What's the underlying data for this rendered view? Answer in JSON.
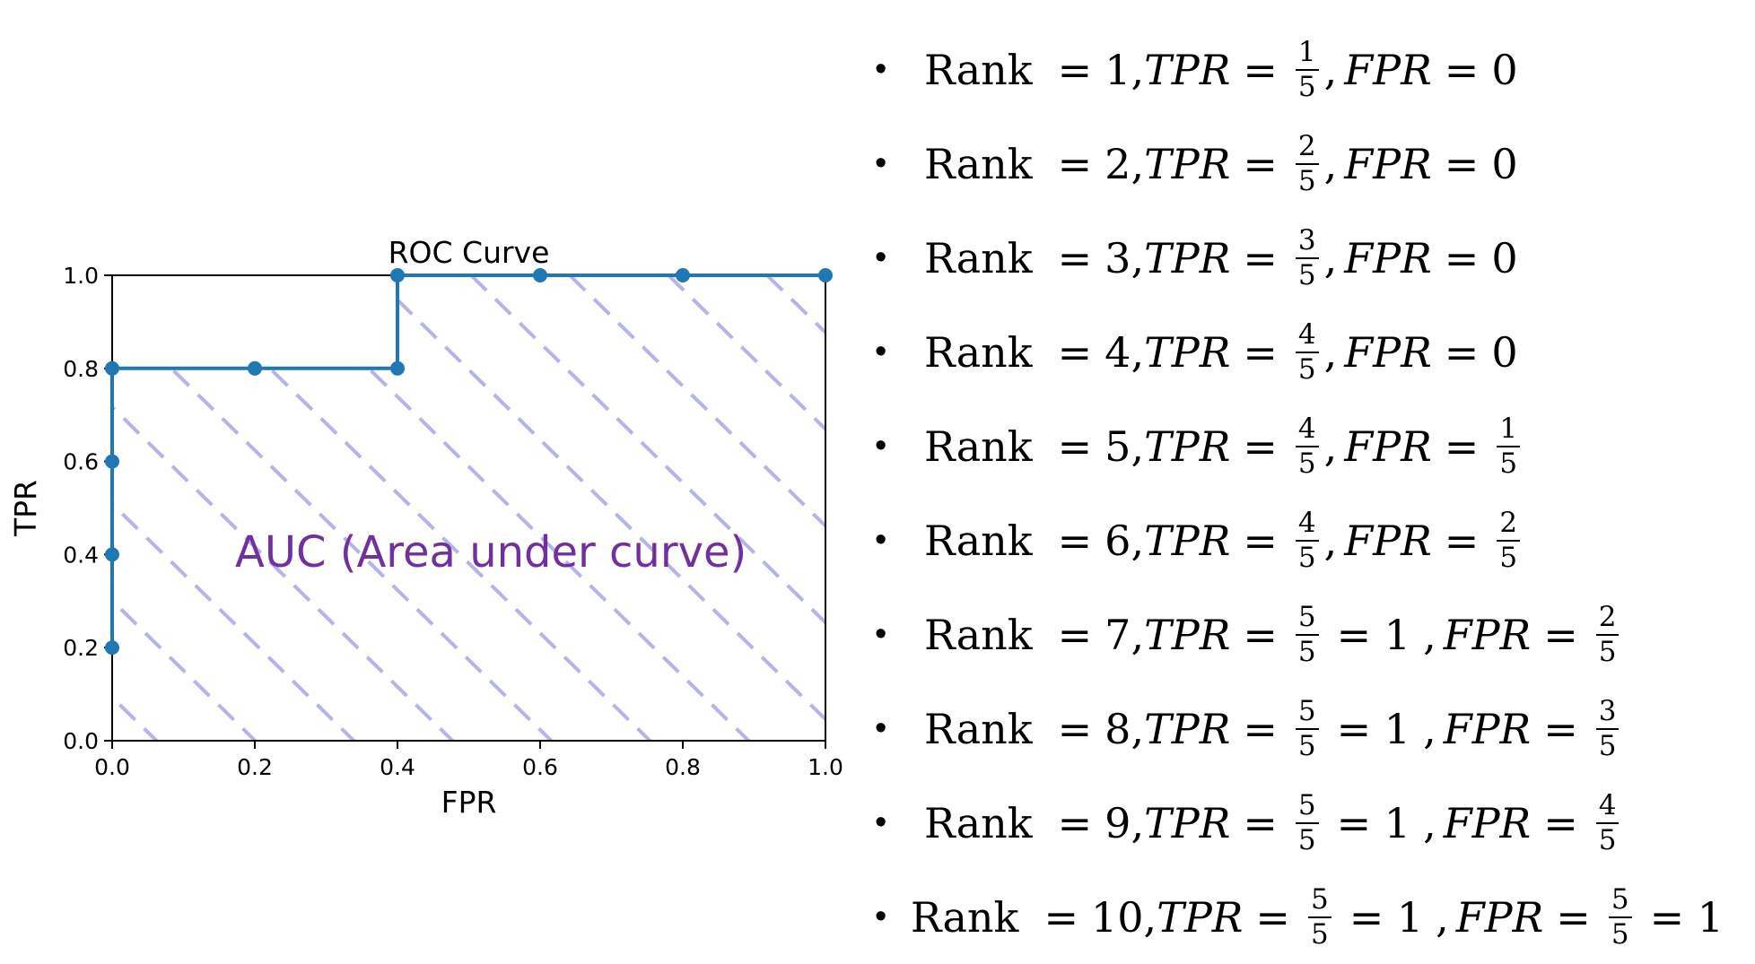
{
  "chart_data": {
    "type": "line",
    "title": "ROC Curve",
    "xlabel": "FPR",
    "ylabel": "TPR",
    "xlim": [
      0.0,
      1.0
    ],
    "ylim": [
      0.0,
      1.0
    ],
    "xticks": [
      "0.0",
      "0.2",
      "0.4",
      "0.6",
      "0.8",
      "1.0"
    ],
    "yticks": [
      "0.0",
      "0.2",
      "0.4",
      "0.6",
      "0.8",
      "1.0"
    ],
    "grid": false,
    "series": [
      {
        "x": [
          0.0,
          0.0,
          0.0,
          0.0,
          0.2,
          0.4,
          0.4,
          0.6,
          0.8,
          1.0
        ],
        "y": [
          0.2,
          0.4,
          0.6,
          0.8,
          0.8,
          0.8,
          1.0,
          1.0,
          1.0,
          1.0
        ],
        "color": "#1f77b4",
        "marker": "circle"
      }
    ],
    "annotation": "AUC (Area under curve)",
    "annotation_color": "#7030a0",
    "hatch_color": "#b3b3ee"
  },
  "rank_list": [
    {
      "rank_word": "Rank",
      "eq": "=",
      "rank": "1,",
      "tpr_var": "TPR",
      "tpr_frac": [
        "1",
        "5"
      ],
      "tpr_extra": "",
      "fpr_var": "FPR",
      "fpr_value": "0",
      "fpr_frac": null,
      "fpr_extra": ""
    },
    {
      "rank_word": "Rank",
      "eq": "=",
      "rank": "2,",
      "tpr_var": "TPR",
      "tpr_frac": [
        "2",
        "5"
      ],
      "tpr_extra": "",
      "fpr_var": "FPR",
      "fpr_value": "0",
      "fpr_frac": null,
      "fpr_extra": ""
    },
    {
      "rank_word": "Rank",
      "eq": "=",
      "rank": "3,",
      "tpr_var": "TPR",
      "tpr_frac": [
        "3",
        "5"
      ],
      "tpr_extra": "",
      "fpr_var": "FPR",
      "fpr_value": "0",
      "fpr_frac": null,
      "fpr_extra": ""
    },
    {
      "rank_word": "Rank",
      "eq": "=",
      "rank": "4,",
      "tpr_var": "TPR",
      "tpr_frac": [
        "4",
        "5"
      ],
      "tpr_extra": "",
      "fpr_var": "FPR",
      "fpr_value": "0",
      "fpr_frac": null,
      "fpr_extra": ""
    },
    {
      "rank_word": "Rank",
      "eq": "=",
      "rank": "5,",
      "tpr_var": "TPR",
      "tpr_frac": [
        "4",
        "5"
      ],
      "tpr_extra": "",
      "fpr_var": "FPR",
      "fpr_value": "",
      "fpr_frac": [
        "1",
        "5"
      ],
      "fpr_extra": ""
    },
    {
      "rank_word": "Rank",
      "eq": "=",
      "rank": "6,",
      "tpr_var": "TPR",
      "tpr_frac": [
        "4",
        "5"
      ],
      "tpr_extra": "",
      "fpr_var": "FPR",
      "fpr_value": "",
      "fpr_frac": [
        "2",
        "5"
      ],
      "fpr_extra": ""
    },
    {
      "rank_word": "Rank",
      "eq": "=",
      "rank": "7,",
      "tpr_var": "TPR",
      "tpr_frac": [
        "5",
        "5"
      ],
      "tpr_extra": "= 1",
      "fpr_var": "FPR",
      "fpr_value": "",
      "fpr_frac": [
        "2",
        "5"
      ],
      "fpr_extra": ""
    },
    {
      "rank_word": "Rank",
      "eq": "=",
      "rank": "8,",
      "tpr_var": "TPR",
      "tpr_frac": [
        "5",
        "5"
      ],
      "tpr_extra": "= 1",
      "fpr_var": "FPR",
      "fpr_value": "",
      "fpr_frac": [
        "3",
        "5"
      ],
      "fpr_extra": ""
    },
    {
      "rank_word": "Rank",
      "eq": "=",
      "rank": "9,",
      "tpr_var": "TPR",
      "tpr_frac": [
        "5",
        "5"
      ],
      "tpr_extra": "= 1",
      "fpr_var": "FPR",
      "fpr_value": "",
      "fpr_frac": [
        "4",
        "5"
      ],
      "fpr_extra": ""
    },
    {
      "rank_word": "Rank",
      "eq": "=",
      "rank": "10,",
      "tpr_var": "TPR",
      "tpr_frac": [
        "5",
        "5"
      ],
      "tpr_extra": "= 1",
      "fpr_var": "FPR",
      "fpr_value": "",
      "fpr_frac": [
        "5",
        "5"
      ],
      "fpr_extra": "= 1"
    }
  ]
}
